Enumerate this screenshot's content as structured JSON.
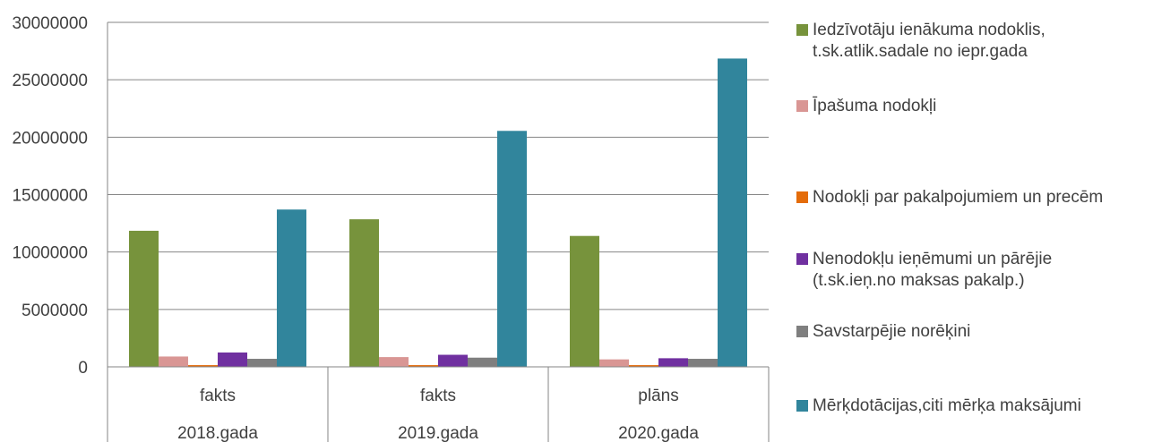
{
  "chart_data": {
    "type": "bar",
    "categories": [
      {
        "label": "fakts",
        "group": "2018.gada"
      },
      {
        "label": "fakts",
        "group": "2019.gada"
      },
      {
        "label": "plāns",
        "group": "2020.gada"
      }
    ],
    "series": [
      {
        "name": "Iedzīvotāju ienākuma nodoklis,\nt.sk.atlik.sadale no iepr.gada",
        "color": "#77933c",
        "values": [
          11850000,
          12850000,
          11400000
        ]
      },
      {
        "name": "Īpašuma nodokļi",
        "color": "#d99694",
        "values": [
          900000,
          850000,
          650000
        ]
      },
      {
        "name": "Nodokļi par pakalpojumiem un precēm",
        "color": "#e46c0a",
        "values": [
          150000,
          150000,
          150000
        ]
      },
      {
        "name": "Nenodokļu ieņēmumi un pārējie\n(t.sk.ieņ.no maksas pakalp.)",
        "color": "#7030a0",
        "values": [
          1250000,
          1050000,
          750000
        ]
      },
      {
        "name": "Savstarpējie norēķini",
        "color": "#7f7f7f",
        "values": [
          700000,
          800000,
          700000
        ]
      },
      {
        "name": "Mērķdotācijas,citi mērķa maksājumi",
        "color": "#31859c",
        "values": [
          13700000,
          20550000,
          26850000
        ]
      }
    ],
    "ylim": [
      0,
      30000000
    ],
    "yticks": [
      "0",
      "5000000",
      "10000000",
      "15000000",
      "20000000",
      "25000000",
      "30000000"
    ],
    "grid": true,
    "legend_position": "right"
  }
}
